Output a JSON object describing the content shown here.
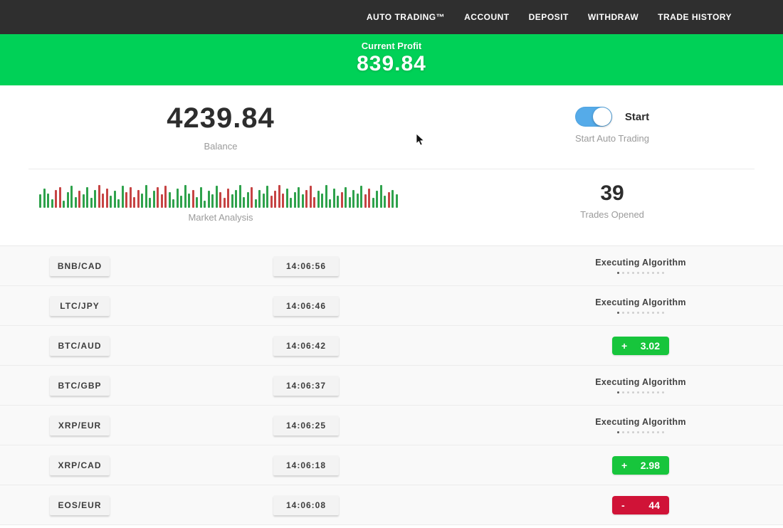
{
  "navbar": {
    "items": [
      {
        "label": "AUTO TRADING™"
      },
      {
        "label": "ACCOUNT"
      },
      {
        "label": "DEPOSIT"
      },
      {
        "label": "WITHDRAW"
      },
      {
        "label": "TRADE HISTORY"
      }
    ]
  },
  "profit_banner": {
    "label": "Current Profit",
    "value": "839.84"
  },
  "account": {
    "balance": "4239.84",
    "balance_label": "Balance",
    "toggle_label": "Start",
    "toggle_caption": "Start Auto Trading",
    "toggle_state": "on"
  },
  "market": {
    "chart_label": "Market Analysis",
    "trades_opened": "39",
    "trades_opened_label": "Trades Opened"
  },
  "chart_data": {
    "type": "bar",
    "title": "Market Analysis",
    "note": "mini candlestick-style volume bars, green=up red=down, heights are % of 34px",
    "bars": [
      "g55",
      "g80",
      "g60",
      "g35",
      "r75",
      "r85",
      "g30",
      "g65",
      "g90",
      "g45",
      "r70",
      "g55",
      "g85",
      "g40",
      "g75",
      "r95",
      "r60",
      "r80",
      "g50",
      "g70",
      "g35",
      "g90",
      "r65",
      "r85",
      "r45",
      "r75",
      "g60",
      "g95",
      "g40",
      "g70",
      "r85",
      "r55",
      "r90",
      "g65",
      "g35",
      "g80",
      "g50",
      "g95",
      "g60",
      "r75",
      "g45",
      "g85",
      "g30",
      "g70",
      "g55",
      "g90",
      "r65",
      "r40",
      "r80",
      "g55",
      "g75",
      "g95",
      "g45",
      "g65",
      "r85",
      "g35",
      "g75",
      "g60",
      "g90",
      "r50",
      "r70",
      "r95",
      "r60",
      "g80",
      "g40",
      "g65",
      "g85",
      "g55",
      "r75",
      "r90",
      "r45",
      "g70",
      "g60",
      "g95",
      "g35",
      "g80",
      "g50",
      "r65",
      "g85",
      "g45",
      "g75",
      "g60",
      "g90",
      "r55",
      "r80",
      "g40",
      "g70",
      "g95",
      "g50",
      "r65",
      "g75",
      "g55"
    ]
  },
  "trades": {
    "executing_label": "Executing Algorithm",
    "dots_count": 10,
    "rows": [
      {
        "pair": "BNB/CAD",
        "time": "14:06:56",
        "status": "executing"
      },
      {
        "pair": "LTC/JPY",
        "time": "14:06:46",
        "status": "executing"
      },
      {
        "pair": "BTC/AUD",
        "time": "14:06:42",
        "status": "result",
        "kind": "profit",
        "sign": "+",
        "value": "3.02"
      },
      {
        "pair": "BTC/GBP",
        "time": "14:06:37",
        "status": "executing"
      },
      {
        "pair": "XRP/EUR",
        "time": "14:06:25",
        "status": "executing"
      },
      {
        "pair": "XRP/CAD",
        "time": "14:06:18",
        "status": "result",
        "kind": "profit",
        "sign": "+",
        "value": "2.98"
      },
      {
        "pair": "EOS/EUR",
        "time": "14:06:08",
        "status": "result",
        "kind": "loss",
        "sign": "-",
        "value": "44"
      }
    ]
  },
  "colors": {
    "navbar_bg": "#2f2f2f",
    "banner_green": "#00d157",
    "profit_green": "#17c53c",
    "loss_red": "#d01337",
    "toggle_blue": "#55abe9",
    "bar_green": "#2fa24c",
    "bar_red": "#c64444"
  }
}
